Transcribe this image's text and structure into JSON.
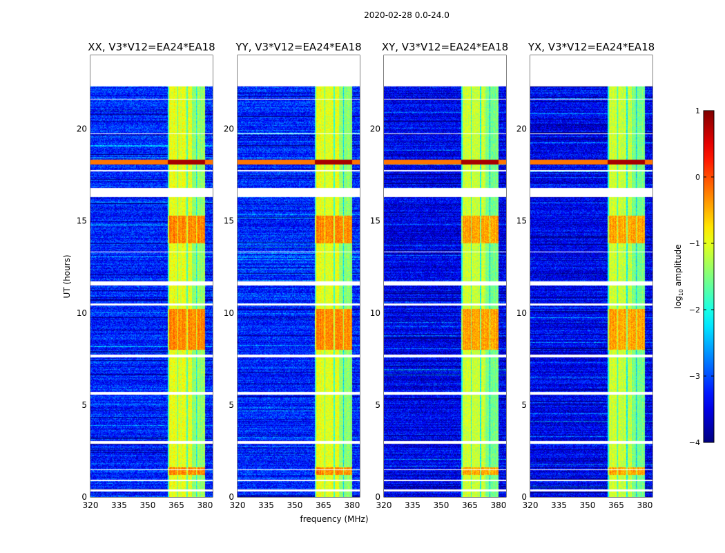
{
  "chart_data": {
    "type": "heatmap",
    "suptitle": "2020-02-28 0.0-24.0",
    "xlabel": "frequency (MHz)",
    "ylabel": "UT (hours)",
    "xlim": [
      320,
      384
    ],
    "ylim": [
      0,
      24
    ],
    "xticks": [
      320,
      335,
      350,
      365,
      380
    ],
    "yticks": [
      0,
      5,
      10,
      15,
      20
    ],
    "panels": [
      {
        "title": "XX, V3*V12=EA24*EA18",
        "seed": 11
      },
      {
        "title": "YY, V3*V12=EA24*EA18",
        "seed": 23
      },
      {
        "title": "XY, V3*V12=EA24*EA18",
        "seed": 37
      },
      {
        "title": "YX, V3*V12=EA24*EA18",
        "seed": 41
      }
    ],
    "data_hours": [
      0,
      22.3
    ],
    "rfi_band_mhz": [
      360.5,
      380
    ],
    "background_log_amp": -3.2,
    "band_log_amp": -1.0,
    "strong_band_hours": [
      [
        8.0,
        10.2
      ],
      [
        13.8,
        15.3
      ],
      [
        1.2,
        1.6
      ]
    ],
    "strong_rfi_row_hour": 18.2,
    "flagged_hours": [
      [
        0.3,
        0.4
      ],
      [
        0.85,
        0.95
      ],
      [
        1.45,
        1.5
      ],
      [
        2.9,
        3.05
      ],
      [
        5.55,
        5.7
      ],
      [
        7.6,
        7.75
      ],
      [
        10.4,
        10.5
      ],
      [
        11.5,
        11.7
      ],
      [
        13.3,
        13.35
      ],
      [
        16.3,
        16.8
      ],
      [
        17.7,
        17.75
      ],
      [
        19.7,
        19.75
      ],
      [
        21.6,
        21.65
      ]
    ],
    "colorbar": {
      "label": "log",
      "label_sub": "10",
      "label_rest": " amplitude",
      "range": [
        -4,
        1
      ],
      "ticks": [
        "1",
        "0",
        "−1",
        "−2",
        "−3",
        "−4"
      ],
      "tick_values": [
        1,
        0,
        -1,
        -2,
        -3,
        -4
      ],
      "colormap": "jet"
    }
  }
}
